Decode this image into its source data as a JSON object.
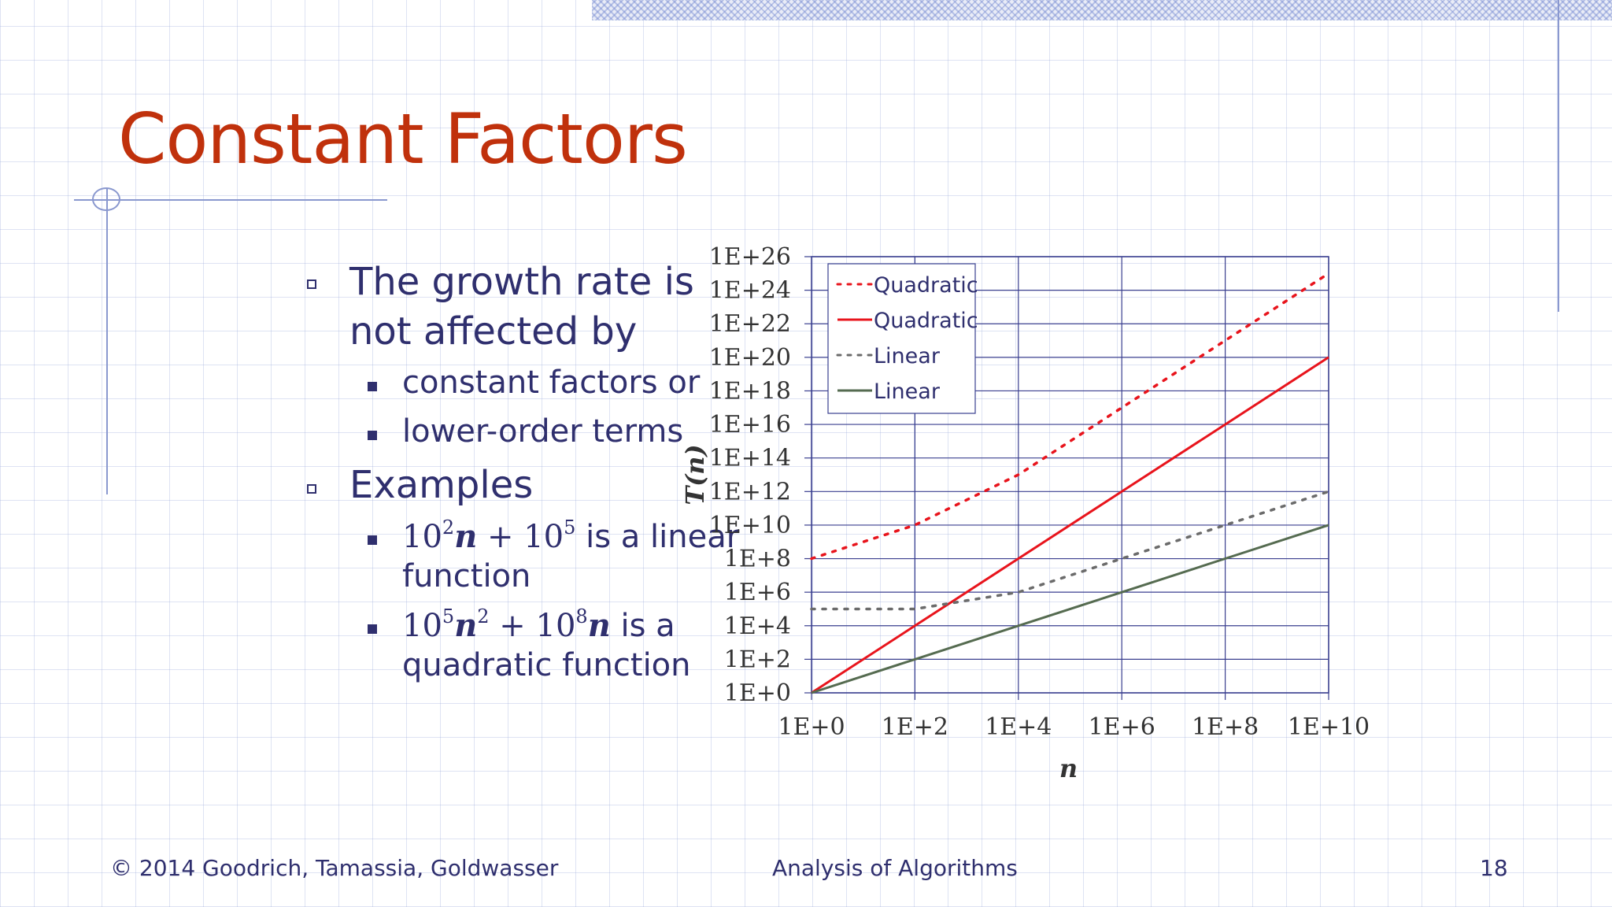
{
  "slide": {
    "title": "Constant Factors",
    "bullets": [
      {
        "line1": "The growth rate is",
        "line2": "not affected by"
      },
      {
        "line1": "Examples"
      }
    ],
    "subbullets_a": [
      "constant factors or",
      "lower-order terms"
    ],
    "example1": {
      "c1": "10",
      "e1": "2",
      "v1": "n",
      "op": " + ",
      "c2": "10",
      "e2": "5",
      "rest": " is a linear",
      "line2": "function"
    },
    "example2": {
      "c1": "10",
      "e1": "5",
      "v1": "n",
      "e1b": "2",
      "op": " + ",
      "c2": "10",
      "e2": "8",
      "v2": "n",
      "rest": " is a",
      "line2": "quadratic function"
    }
  },
  "footer": {
    "copyright": "© 2014 Goodrich, Tamassia, Goldwasser",
    "center": "Analysis of Algorithms",
    "page": "18"
  },
  "colors": {
    "title": "#c0310c",
    "text": "#2f2f6e",
    "quadratic": "#e8141c",
    "linear": "#556b50",
    "linear_dotted": "#6b6b6b",
    "grid": "#3a3f8f"
  },
  "chart_data": {
    "type": "line",
    "xlabel": "n",
    "ylabel": "T(n)",
    "xscale": "log",
    "yscale": "log",
    "xlim": [
      "1E+0",
      "1E+10"
    ],
    "ylim": [
      "1E+0",
      "1E+26"
    ],
    "xticks": [
      "1E+0",
      "1E+2",
      "1E+4",
      "1E+6",
      "1E+8",
      "1E+10"
    ],
    "yticks": [
      "1E+0",
      "1E+2",
      "1E+4",
      "1E+6",
      "1E+8",
      "1E+10",
      "1E+12",
      "1E+14",
      "1E+16",
      "1E+18",
      "1E+20",
      "1E+22",
      "1E+24",
      "1E+26"
    ],
    "grid": true,
    "legend_position": "top-left",
    "x": [
      "1E+0",
      "1E+2",
      "1E+4",
      "1E+6",
      "1E+8",
      "1E+10"
    ],
    "series": [
      {
        "name": "Quadratic",
        "style": "dotted",
        "color": "#e8141c",
        "values": [
          "1E+8",
          "1E+10",
          "1E+13",
          "1E+17",
          "1E+21",
          "1E+25"
        ]
      },
      {
        "name": "Quadratic",
        "style": "solid",
        "color": "#e8141c",
        "values": [
          "1E+0",
          "1E+4",
          "1E+8",
          "1E+12",
          "1E+16",
          "1E+20"
        ]
      },
      {
        "name": "Linear",
        "style": "dotted",
        "color": "#6b6b6b",
        "values": [
          "1E+5",
          "1E+5",
          "1E+6",
          "1E+8",
          "1E+10",
          "1E+12"
        ]
      },
      {
        "name": "Linear",
        "style": "solid",
        "color": "#556b50",
        "values": [
          "1E+0",
          "1E+2",
          "1E+4",
          "1E+6",
          "1E+8",
          "1E+10"
        ]
      }
    ]
  }
}
